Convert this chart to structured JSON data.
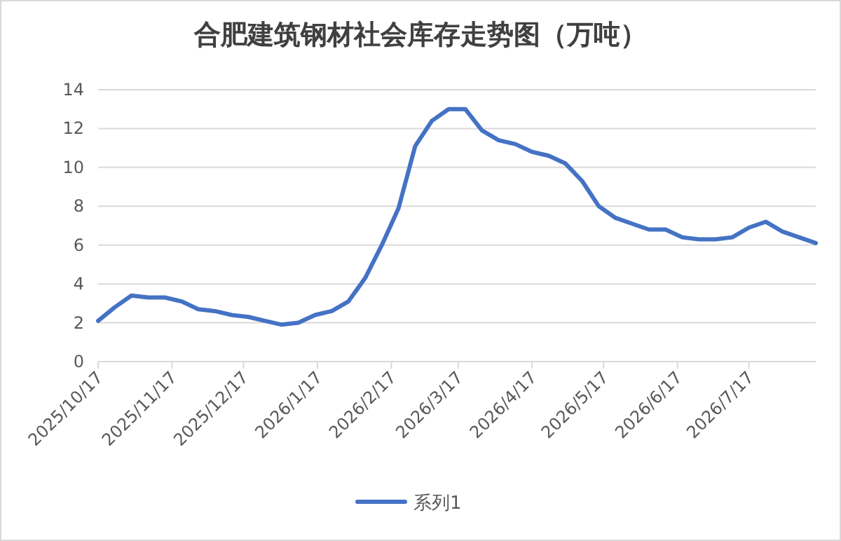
{
  "chart_data": {
    "type": "line",
    "title": "合肥建筑钢材社会库存走势图（万吨）",
    "x": [
      "2025-10-17",
      "2025-10-24",
      "2025-10-31",
      "2025-11-07",
      "2025-11-14",
      "2025-11-21",
      "2025-11-28",
      "2025-12-05",
      "2025-12-12",
      "2025-12-19",
      "2025-12-26",
      "2026-01-02",
      "2026-01-09",
      "2026-01-16",
      "2026-01-23",
      "2026-01-30",
      "2026-02-06",
      "2026-02-13",
      "2026-02-20",
      "2026-02-27",
      "2026-03-06",
      "2026-03-13",
      "2026-03-20",
      "2026-03-27",
      "2026-04-03",
      "2026-04-10",
      "2026-04-17",
      "2026-04-24",
      "2026-05-01",
      "2026-05-08",
      "2026-05-15",
      "2026-05-22",
      "2026-05-29",
      "2026-06-05",
      "2026-06-12",
      "2026-06-19",
      "2026-06-26",
      "2026-07-03",
      "2026-07-10",
      "2026-07-17",
      "2026-07-24",
      "2026-07-31",
      "2026-08-07",
      "2026-08-14"
    ],
    "series": [
      {
        "name": "系列1",
        "color": "#4472c4",
        "values": [
          2.1,
          2.8,
          3.4,
          3.3,
          3.3,
          3.1,
          2.7,
          2.6,
          2.4,
          2.3,
          2.1,
          1.9,
          2.0,
          2.4,
          2.6,
          3.1,
          4.3,
          6.0,
          7.9,
          11.1,
          12.4,
          13.0,
          13.0,
          11.9,
          11.4,
          11.2,
          10.8,
          10.6,
          10.2,
          9.3,
          8.0,
          7.4,
          7.1,
          6.8,
          6.8,
          6.4,
          6.3,
          6.3,
          6.4,
          6.9,
          7.2,
          6.7,
          6.4,
          6.1
        ]
      }
    ],
    "xlim": [
      "2025-10-17",
      "2026-08-14"
    ],
    "xticks": [
      {
        "value": "2025-10-17",
        "label": "2025/10/17"
      },
      {
        "value": "2025-11-17",
        "label": "2025/11/17"
      },
      {
        "value": "2025-12-17",
        "label": "2025/12/17"
      },
      {
        "value": "2026-01-17",
        "label": "2026/1/17"
      },
      {
        "value": "2026-02-17",
        "label": "2026/2/17"
      },
      {
        "value": "2026-03-17",
        "label": "2026/3/17"
      },
      {
        "value": "2026-04-17",
        "label": "2026/4/17"
      },
      {
        "value": "2026-05-17",
        "label": "2026/5/17"
      },
      {
        "value": "2026-06-17",
        "label": "2026/6/17"
      },
      {
        "value": "2026-07-17",
        "label": "2026/7/17"
      }
    ],
    "ylim": [
      0,
      14
    ],
    "yticks": [
      0,
      2,
      4,
      6,
      8,
      10,
      12,
      14
    ],
    "grid": "y",
    "legend": "bottom",
    "marker": "none",
    "line_style": "solid"
  }
}
